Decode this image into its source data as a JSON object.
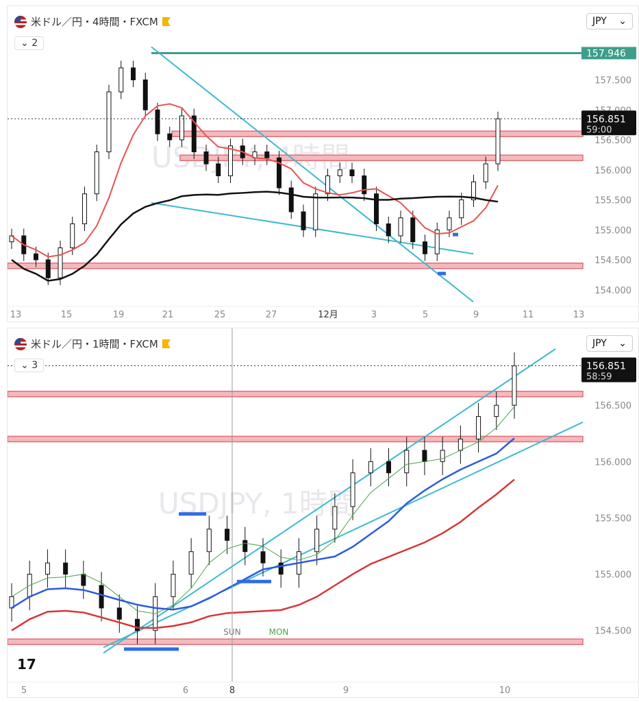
{
  "panel1": {
    "title": "米ドル／円・4時間・FXCM",
    "currency": "JPY",
    "collapse_count": "2",
    "watermark": "USDJPY, 4時間",
    "price_labels": [
      "157.500",
      "157.000",
      "156.500",
      "156.000",
      "155.500",
      "155.000",
      "154.500",
      "154.000"
    ],
    "x_labels": [
      "13",
      "15",
      "19",
      "21",
      "25",
      "27",
      "12月",
      "3",
      "5",
      "9",
      "11",
      "13"
    ],
    "tag_green": "157.946",
    "tag_price": "156.851",
    "tag_countdown": "59:00",
    "colors": {
      "ma20": "#e8524f",
      "ma200": "#111111",
      "channel": "#3bb9d0",
      "zone": "#e26d77",
      "green": "#3d9e8a",
      "bull": "#ffffff",
      "bear": "#111111"
    }
  },
  "panel2": {
    "title": "米ドル／円・1時間・FXCM",
    "currency": "JPY",
    "collapse_count": "3",
    "watermark": "USDJPY, 1時間",
    "price_labels": [
      "156.500",
      "156.000",
      "155.500",
      "155.000",
      "154.500"
    ],
    "x_labels": [
      "5",
      "6",
      "8",
      "9",
      "10"
    ],
    "session_labels": [
      "SUN",
      "MON"
    ],
    "tag_price": "156.851",
    "tag_countdown": "58:59",
    "colors": {
      "ribbon_green": "#4aa34a",
      "ribbon_red": "#e8524f",
      "ema_blue": "#2c5ae0",
      "ema_red": "#d93535",
      "channel": "#3bb9d0",
      "zone": "#e26d77",
      "marker_blue": "#2f6ce5"
    }
  },
  "chart_data": [
    {
      "type": "candlestick",
      "title": "米ドル／円・4時間・FXCM",
      "ylim": [
        153.7,
        158.1
      ],
      "x_ticks": [
        "13",
        "15",
        "19",
        "21",
        "25",
        "27",
        "12月",
        "3",
        "5",
        "9",
        "11",
        "13"
      ],
      "close_path": [
        154.9,
        154.6,
        154.5,
        154.2,
        154.7,
        155.1,
        155.6,
        156.3,
        157.3,
        157.7,
        157.5,
        157.0,
        156.6,
        156.5,
        156.9,
        156.3,
        156.1,
        155.9,
        156.4,
        156.2,
        156.3,
        156.2,
        155.7,
        155.3,
        155.0,
        155.6,
        155.9,
        156.0,
        155.9,
        155.6,
        155.1,
        154.9,
        155.2,
        154.8,
        154.6,
        155.0,
        155.2,
        155.5,
        155.8,
        156.1,
        156.85
      ],
      "horizontal_levels": [
        157.946,
        156.6,
        156.2,
        154.4
      ],
      "last_price": 156.851
    },
    {
      "type": "candlestick",
      "title": "米ドル／円・1時間・FXCM",
      "ylim": [
        154.2,
        157.0
      ],
      "x_ticks": [
        "5",
        "6",
        "8",
        "9",
        "10"
      ],
      "close_path": [
        154.8,
        155.0,
        155.1,
        155.0,
        154.9,
        154.7,
        154.6,
        154.5,
        154.8,
        155.0,
        155.2,
        155.4,
        155.3,
        155.2,
        155.1,
        155.0,
        155.2,
        155.4,
        155.6,
        155.9,
        156.0,
        155.9,
        156.1,
        156.0,
        156.1,
        156.2,
        156.4,
        156.5,
        156.85
      ],
      "horizontal_levels": [
        156.6,
        156.2,
        154.4
      ],
      "last_price": 156.851
    }
  ]
}
